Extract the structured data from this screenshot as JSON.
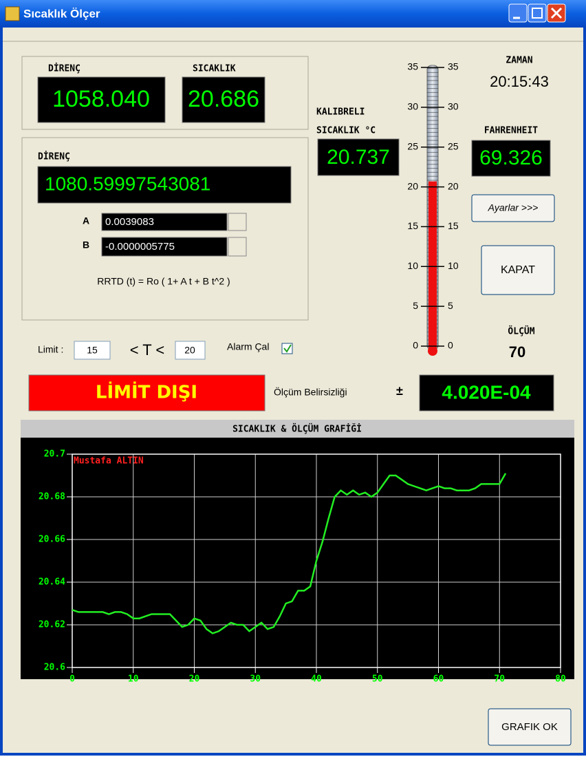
{
  "window": {
    "title": "Sıcaklık Ölçer"
  },
  "resistance_box": {
    "label": "DİRENÇ",
    "value": "1058.040"
  },
  "temperature_box": {
    "label": "SICAKLIK",
    "value": "20.686"
  },
  "calc_box": {
    "label": "DİRENÇ",
    "value": "1080.59997543081",
    "a_label": "A",
    "a_value": "0.0039083",
    "b_label": "B",
    "b_value": "-0.0000005775",
    "formula": "RRTD (t) = Ro ( 1+ A t + B t^2 )"
  },
  "calibrated": {
    "label_1": "KALIBRELI",
    "label_2": "SICAKLIK °C",
    "value": "20.737"
  },
  "clock": {
    "label": "ZAMAN",
    "value": "20:15:43"
  },
  "fahrenheit": {
    "label": "FAHRENHEIT",
    "value": "69.326"
  },
  "buttons": {
    "settings": "Ayarlar >>>",
    "close": "KAPAT",
    "graph_ok": "GRAFIK OK"
  },
  "count": {
    "label": "ÖLÇÜM",
    "value": "70"
  },
  "limits": {
    "label": "Limit :",
    "low": "15",
    "relation": "< T <",
    "high": "20",
    "alarm_label": "Alarm Çal"
  },
  "status": {
    "text": "LİMİT DIŞI"
  },
  "uncertainty": {
    "label": "Ölçüm Belirsizliği",
    "sign": "±",
    "value": "4.020E-04"
  },
  "thermometer": {
    "value": 20.686,
    "lim": [
      0,
      35
    ],
    "ticks": [
      0,
      5,
      10,
      15,
      20,
      25,
      30,
      35
    ]
  },
  "chart_data": {
    "type": "line",
    "title": "SICAKLIK & ÖLÇÜM GRAFİĞİ",
    "annotation": "Mustafa ALTIN",
    "x": [
      0,
      1,
      2,
      3,
      4,
      5,
      6,
      7,
      8,
      9,
      10,
      11,
      12,
      13,
      14,
      15,
      16,
      17,
      18,
      19,
      20,
      21,
      22,
      23,
      24,
      25,
      26,
      27,
      28,
      29,
      30,
      31,
      32,
      33,
      34,
      35,
      36,
      37,
      38,
      39,
      40,
      41,
      42,
      43,
      44,
      45,
      46,
      47,
      48,
      49,
      50,
      51,
      52,
      53,
      54,
      55,
      56,
      57,
      58,
      59,
      60,
      61,
      62,
      63,
      64,
      65,
      66,
      67,
      68,
      69,
      70,
      71
    ],
    "series": [
      {
        "color": "#22ee22",
        "values": [
          20.627,
          20.626,
          20.626,
          20.626,
          20.626,
          20.626,
          20.625,
          20.626,
          20.626,
          20.625,
          20.623,
          20.623,
          20.624,
          20.625,
          20.625,
          20.625,
          20.625,
          20.622,
          20.619,
          20.62,
          20.623,
          20.622,
          20.618,
          20.616,
          20.617,
          20.619,
          20.621,
          20.62,
          20.62,
          20.617,
          20.619,
          20.621,
          20.618,
          20.619,
          20.624,
          20.63,
          20.631,
          20.636,
          20.636,
          20.638,
          20.65,
          20.659,
          20.67,
          20.68,
          20.683,
          20.681,
          20.683,
          20.681,
          20.682,
          20.68,
          20.682,
          20.686,
          20.69,
          20.69,
          20.688,
          20.686,
          20.685,
          20.684,
          20.683,
          20.684,
          20.685,
          20.684,
          20.684,
          20.683,
          20.683,
          20.683,
          20.684,
          20.686,
          20.686,
          20.686,
          20.686,
          20.691
        ]
      }
    ],
    "xlim": [
      0,
      80
    ],
    "xticks": [
      0,
      10,
      20,
      30,
      40,
      50,
      60,
      70,
      80
    ],
    "ylim": [
      20.6,
      20.7
    ],
    "yticks": [
      20.6,
      20.62,
      20.64,
      20.66,
      20.68,
      20.7
    ],
    "grid": true
  }
}
